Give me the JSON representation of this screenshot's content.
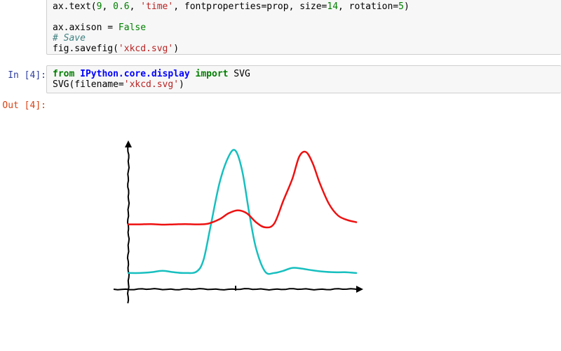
{
  "cell3": {
    "lines": [
      {
        "parts": [
          {
            "t": "ax.text(",
            "c": ""
          },
          {
            "t": "9",
            "c": "num"
          },
          {
            "t": ", ",
            "c": ""
          },
          {
            "t": "0.6",
            "c": "num"
          },
          {
            "t": ", ",
            "c": ""
          },
          {
            "t": "'time'",
            "c": "str"
          },
          {
            "t": ", fontproperties=prop, size=",
            "c": ""
          },
          {
            "t": "14",
            "c": "num"
          },
          {
            "t": ", rotation=",
            "c": ""
          },
          {
            "t": "5",
            "c": "num"
          },
          {
            "t": ")",
            "c": ""
          }
        ]
      },
      {
        "parts": []
      },
      {
        "parts": [
          {
            "t": "ax.axison = ",
            "c": ""
          },
          {
            "t": "False",
            "c": "kwc"
          }
        ]
      },
      {
        "parts": [
          {
            "t": "# Save",
            "c": "cmt"
          }
        ]
      },
      {
        "parts": [
          {
            "t": "fig.savefig(",
            "c": ""
          },
          {
            "t": "'xkcd.svg'",
            "c": "str"
          },
          {
            "t": ")",
            "c": ""
          }
        ]
      }
    ]
  },
  "cell4": {
    "prompt": "In [4]:",
    "lines": [
      {
        "parts": [
          {
            "t": "from",
            "c": "kw"
          },
          {
            "t": " ",
            "c": ""
          },
          {
            "t": "IPython.core.display",
            "c": "mod"
          },
          {
            "t": " ",
            "c": ""
          },
          {
            "t": "import",
            "c": "kw"
          },
          {
            "t": " SVG",
            "c": ""
          }
        ]
      },
      {
        "parts": [
          {
            "t": "SVG(filename=",
            "c": ""
          },
          {
            "t": "'xkcd.svg'",
            "c": "str"
          },
          {
            "t": ")",
            "c": ""
          }
        ]
      }
    ]
  },
  "output": {
    "prompt": "Out [4]:"
  },
  "chart_data": {
    "type": "line",
    "xlim": [
      0,
      10
    ],
    "ylim": [
      0,
      1
    ],
    "axes_visible": false,
    "grid": false,
    "series": [
      {
        "color": "#17bfbf",
        "x": [
          0,
          0.5,
          1,
          1.5,
          2,
          2.5,
          3,
          3.3,
          3.6,
          4,
          4.4,
          4.7,
          5,
          5.3,
          5.6,
          6,
          6.4,
          6.8,
          7.2,
          7.6,
          8,
          8.5,
          9,
          9.5,
          10
        ],
        "y": [
          0.11,
          0.11,
          0.115,
          0.125,
          0.115,
          0.11,
          0.12,
          0.2,
          0.42,
          0.72,
          0.9,
          0.94,
          0.8,
          0.52,
          0.28,
          0.12,
          0.11,
          0.125,
          0.145,
          0.14,
          0.13,
          0.12,
          0.115,
          0.115,
          0.11
        ]
      },
      {
        "color": "#ee1111",
        "x": [
          0,
          0.5,
          1,
          1.5,
          2,
          2.5,
          3,
          3.5,
          4,
          4.4,
          4.8,
          5.2,
          5.6,
          6,
          6.4,
          6.8,
          7.2,
          7.5,
          7.8,
          8.1,
          8.4,
          8.8,
          9.2,
          9.6,
          10
        ],
        "y": [
          0.44,
          0.44,
          0.442,
          0.438,
          0.44,
          0.442,
          0.44,
          0.445,
          0.475,
          0.515,
          0.535,
          0.515,
          0.455,
          0.42,
          0.445,
          0.6,
          0.75,
          0.9,
          0.93,
          0.85,
          0.72,
          0.58,
          0.5,
          0.47,
          0.455
        ]
      }
    ]
  }
}
